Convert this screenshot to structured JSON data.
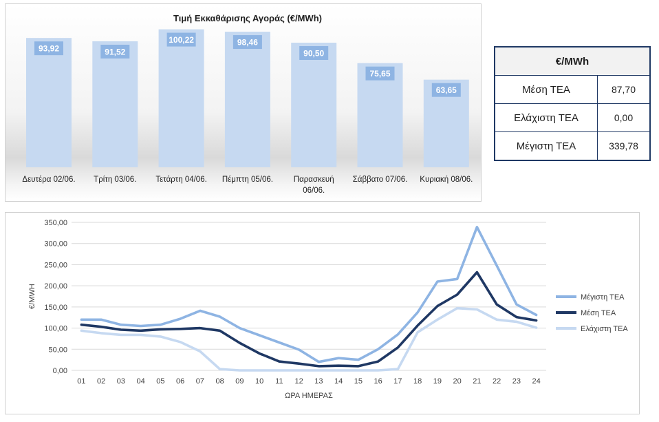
{
  "chart_data": [
    {
      "type": "bar",
      "title": "Τιμή Εκκαθάρισης Αγοράς (€/MWh)",
      "categories": [
        "Δευτέρα 02/06.",
        "Τρίτη 03/06.",
        "Τετάρτη 04/06.",
        "Πέμπτη 05/06.",
        "Παρασκευή 06/06.",
        "Σάββατο 07/06.",
        "Κυριακή 08/06."
      ],
      "category_lines": [
        [
          "Δευτέρα 02/06."
        ],
        [
          "Τρίτη 03/06."
        ],
        [
          "Τετάρτη 04/06."
        ],
        [
          "Πέμπτη 05/06."
        ],
        [
          "Παρασκευή",
          "06/06."
        ],
        [
          "Σάββατο 07/06."
        ],
        [
          "Κυριακή 08/06."
        ]
      ],
      "values": [
        93.92,
        91.52,
        100.22,
        98.46,
        90.5,
        75.65,
        63.65
      ],
      "value_labels": [
        "93,92",
        "91,52",
        "100,22",
        "98,46",
        "90,50",
        "75,65",
        "63,65"
      ],
      "ylim": [
        0,
        110
      ],
      "bar_color": "#c6d9f1",
      "label_color": "#8eb4e3"
    },
    {
      "type": "line",
      "x": [
        "01",
        "02",
        "03",
        "04",
        "05",
        "06",
        "07",
        "08",
        "09",
        "10",
        "11",
        "12",
        "13",
        "14",
        "15",
        "16",
        "17",
        "18",
        "19",
        "20",
        "21",
        "22",
        "23",
        "24"
      ],
      "xlabel": "ΩΡΑ ΗΜΕΡΑΣ",
      "ylabel": "€/MWH",
      "ylim": [
        0,
        350
      ],
      "yticks": [
        0,
        50,
        100,
        150,
        200,
        250,
        300,
        350
      ],
      "ytick_labels": [
        "0,00",
        "50,00",
        "100,00",
        "150,00",
        "200,00",
        "250,00",
        "300,00",
        "350,00"
      ],
      "grid": true,
      "legend": "right",
      "series": [
        {
          "name": "Μέγιστη ΤΕΑ",
          "color": "#8eb4e3",
          "values": [
            120,
            120,
            108,
            105,
            108,
            122,
            141,
            127,
            100,
            83,
            66,
            49,
            20,
            29,
            25,
            50,
            85,
            137,
            210,
            216,
            339,
            248,
            156,
            131
          ]
        },
        {
          "name": "Μέση ΤΕΑ",
          "color": "#1f3864",
          "values": [
            108,
            103,
            96,
            94,
            97,
            98,
            100,
            94,
            65,
            40,
            21,
            16,
            10,
            11,
            10,
            21,
            54,
            106,
            152,
            179,
            232,
            156,
            126,
            118
          ]
        },
        {
          "name": "Ελάχιστη ΤΕΑ",
          "color": "#c6d9f1",
          "values": [
            94,
            88,
            84,
            84,
            80,
            67,
            45,
            3,
            0,
            0,
            0,
            0,
            0,
            0,
            0,
            0,
            3,
            90,
            120,
            147,
            144,
            120,
            115,
            101
          ]
        }
      ]
    }
  ],
  "stats_table": {
    "header": "€/MWh",
    "rows": [
      {
        "label": "Μέση ΤΕΑ",
        "value": "87,70"
      },
      {
        "label": "Ελάχιστη ΤΕΑ",
        "value": "0,00"
      },
      {
        "label": "Μέγιστη ΤΕΑ",
        "value": "339,78"
      }
    ]
  }
}
